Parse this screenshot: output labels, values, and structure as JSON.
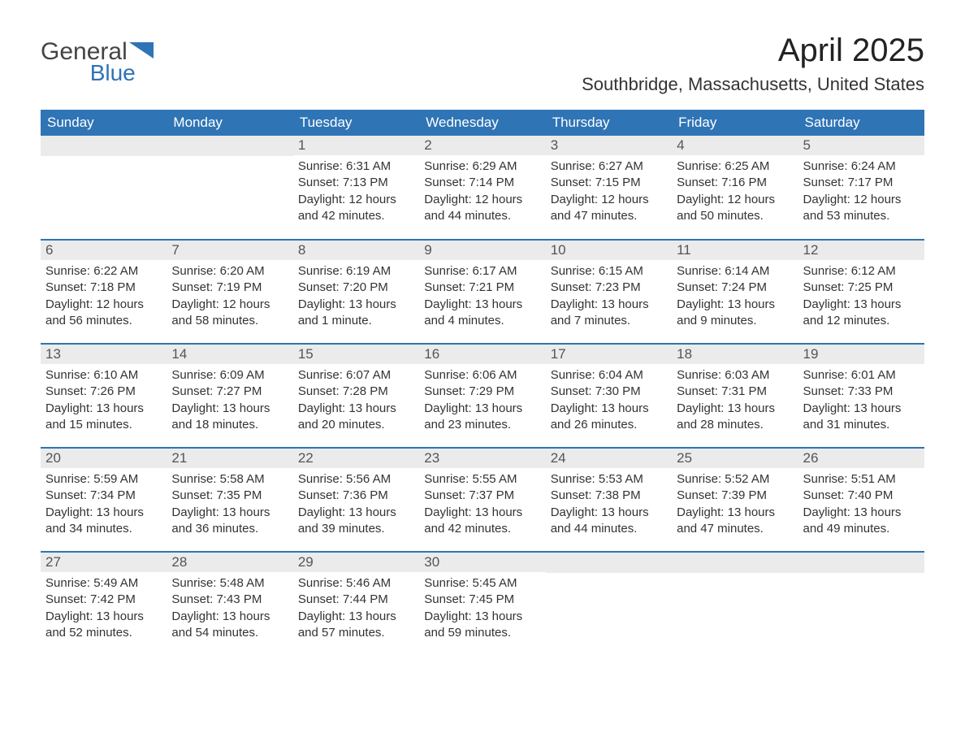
{
  "brand": {
    "word1": "General",
    "word2": "Blue",
    "accent_color": "#2f74b5"
  },
  "title": "April 2025",
  "location": "Southbridge, Massachusetts, United States",
  "header_bg": "#2f74b5",
  "header_fg": "#ffffff",
  "daynum_bg": "#ebebeb",
  "row_divider": "#2f74b5",
  "weekdays": [
    "Sunday",
    "Monday",
    "Tuesday",
    "Wednesday",
    "Thursday",
    "Friday",
    "Saturday"
  ],
  "weeks": [
    [
      null,
      null,
      {
        "n": "1",
        "sunrise": "6:31 AM",
        "sunset": "7:13 PM",
        "daylight": "12 hours and 42 minutes."
      },
      {
        "n": "2",
        "sunrise": "6:29 AM",
        "sunset": "7:14 PM",
        "daylight": "12 hours and 44 minutes."
      },
      {
        "n": "3",
        "sunrise": "6:27 AM",
        "sunset": "7:15 PM",
        "daylight": "12 hours and 47 minutes."
      },
      {
        "n": "4",
        "sunrise": "6:25 AM",
        "sunset": "7:16 PM",
        "daylight": "12 hours and 50 minutes."
      },
      {
        "n": "5",
        "sunrise": "6:24 AM",
        "sunset": "7:17 PM",
        "daylight": "12 hours and 53 minutes."
      }
    ],
    [
      {
        "n": "6",
        "sunrise": "6:22 AM",
        "sunset": "7:18 PM",
        "daylight": "12 hours and 56 minutes."
      },
      {
        "n": "7",
        "sunrise": "6:20 AM",
        "sunset": "7:19 PM",
        "daylight": "12 hours and 58 minutes."
      },
      {
        "n": "8",
        "sunrise": "6:19 AM",
        "sunset": "7:20 PM",
        "daylight": "13 hours and 1 minute."
      },
      {
        "n": "9",
        "sunrise": "6:17 AM",
        "sunset": "7:21 PM",
        "daylight": "13 hours and 4 minutes."
      },
      {
        "n": "10",
        "sunrise": "6:15 AM",
        "sunset": "7:23 PM",
        "daylight": "13 hours and 7 minutes."
      },
      {
        "n": "11",
        "sunrise": "6:14 AM",
        "sunset": "7:24 PM",
        "daylight": "13 hours and 9 minutes."
      },
      {
        "n": "12",
        "sunrise": "6:12 AM",
        "sunset": "7:25 PM",
        "daylight": "13 hours and 12 minutes."
      }
    ],
    [
      {
        "n": "13",
        "sunrise": "6:10 AM",
        "sunset": "7:26 PM",
        "daylight": "13 hours and 15 minutes."
      },
      {
        "n": "14",
        "sunrise": "6:09 AM",
        "sunset": "7:27 PM",
        "daylight": "13 hours and 18 minutes."
      },
      {
        "n": "15",
        "sunrise": "6:07 AM",
        "sunset": "7:28 PM",
        "daylight": "13 hours and 20 minutes."
      },
      {
        "n": "16",
        "sunrise": "6:06 AM",
        "sunset": "7:29 PM",
        "daylight": "13 hours and 23 minutes."
      },
      {
        "n": "17",
        "sunrise": "6:04 AM",
        "sunset": "7:30 PM",
        "daylight": "13 hours and 26 minutes."
      },
      {
        "n": "18",
        "sunrise": "6:03 AM",
        "sunset": "7:31 PM",
        "daylight": "13 hours and 28 minutes."
      },
      {
        "n": "19",
        "sunrise": "6:01 AM",
        "sunset": "7:33 PM",
        "daylight": "13 hours and 31 minutes."
      }
    ],
    [
      {
        "n": "20",
        "sunrise": "5:59 AM",
        "sunset": "7:34 PM",
        "daylight": "13 hours and 34 minutes."
      },
      {
        "n": "21",
        "sunrise": "5:58 AM",
        "sunset": "7:35 PM",
        "daylight": "13 hours and 36 minutes."
      },
      {
        "n": "22",
        "sunrise": "5:56 AM",
        "sunset": "7:36 PM",
        "daylight": "13 hours and 39 minutes."
      },
      {
        "n": "23",
        "sunrise": "5:55 AM",
        "sunset": "7:37 PM",
        "daylight": "13 hours and 42 minutes."
      },
      {
        "n": "24",
        "sunrise": "5:53 AM",
        "sunset": "7:38 PM",
        "daylight": "13 hours and 44 minutes."
      },
      {
        "n": "25",
        "sunrise": "5:52 AM",
        "sunset": "7:39 PM",
        "daylight": "13 hours and 47 minutes."
      },
      {
        "n": "26",
        "sunrise": "5:51 AM",
        "sunset": "7:40 PM",
        "daylight": "13 hours and 49 minutes."
      }
    ],
    [
      {
        "n": "27",
        "sunrise": "5:49 AM",
        "sunset": "7:42 PM",
        "daylight": "13 hours and 52 minutes."
      },
      {
        "n": "28",
        "sunrise": "5:48 AM",
        "sunset": "7:43 PM",
        "daylight": "13 hours and 54 minutes."
      },
      {
        "n": "29",
        "sunrise": "5:46 AM",
        "sunset": "7:44 PM",
        "daylight": "13 hours and 57 minutes."
      },
      {
        "n": "30",
        "sunrise": "5:45 AM",
        "sunset": "7:45 PM",
        "daylight": "13 hours and 59 minutes."
      },
      null,
      null,
      null
    ]
  ],
  "labels": {
    "sunrise": "Sunrise: ",
    "sunset": "Sunset: ",
    "daylight": "Daylight: "
  }
}
